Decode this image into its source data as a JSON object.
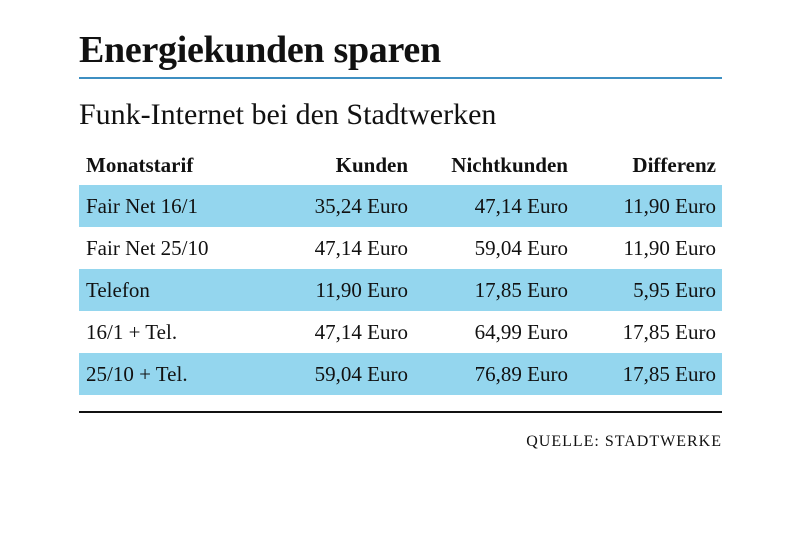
{
  "title": "Energiekunden sparen",
  "subtitle": "Funk-Internet bei den Stadtwerken",
  "colors": {
    "rule": "#3d8fc2",
    "row_shade": "#94d6ee"
  },
  "table": {
    "headers": [
      "Monatstarif",
      "Kunden",
      "Nichtkunden",
      "Differenz"
    ],
    "rows": [
      [
        "Fair Net 16/1",
        "35,24 Euro",
        "47,14 Euro",
        "11,90 Euro"
      ],
      [
        "Fair Net 25/10",
        "47,14 Euro",
        "59,04 Euro",
        "11,90 Euro"
      ],
      [
        "Telefon",
        "11,90 Euro",
        "17,85 Euro",
        "5,95 Euro"
      ],
      [
        "16/1 + Tel.",
        "47,14 Euro",
        "64,99 Euro",
        "17,85 Euro"
      ],
      [
        "25/10 + Tel.",
        "59,04 Euro",
        "76,89 Euro",
        "17,85 Euro"
      ]
    ]
  },
  "source": "QUELLE: STADTWERKE"
}
